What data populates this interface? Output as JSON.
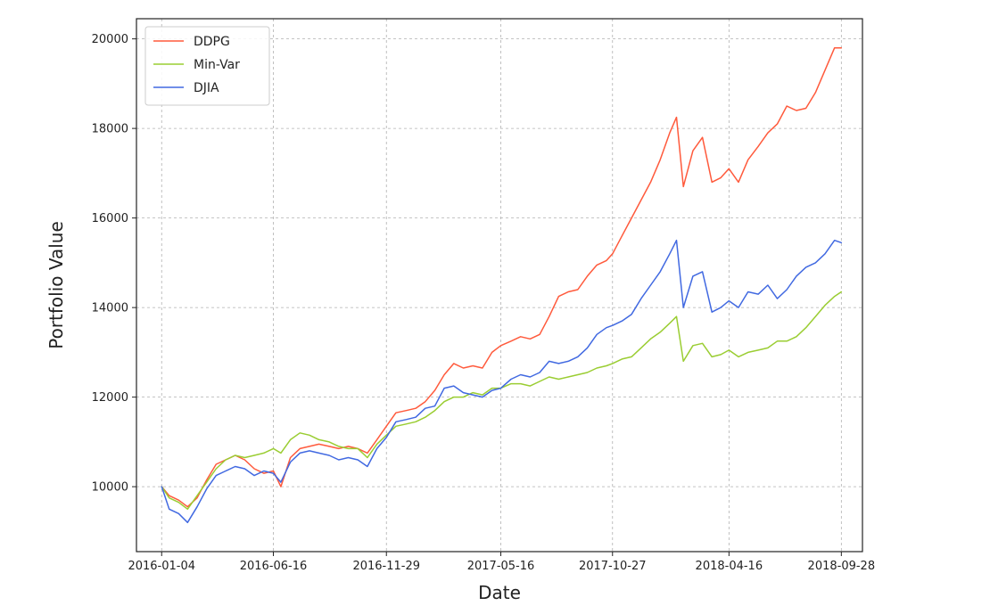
{
  "chart_data": {
    "type": "line",
    "xlabel": "Date",
    "ylabel": "Portfolio Value",
    "x_ticks": [
      "2016-01-04",
      "2016-06-16",
      "2016-11-29",
      "2017-05-16",
      "2017-10-27",
      "2018-04-16",
      "2018-09-28"
    ],
    "y_ticks": [
      10000,
      12000,
      14000,
      16000,
      18000,
      20000
    ],
    "xlim": [
      "2015-11-28",
      "2018-10-29"
    ],
    "ylim": [
      8550,
      20450
    ],
    "grid": true,
    "legend_position": "top-left",
    "series": [
      {
        "name": "DDPG",
        "color": "#ff5a3c",
        "points": [
          [
            "2016-01-04",
            10000
          ],
          [
            "2016-01-15",
            9800
          ],
          [
            "2016-01-29",
            9700
          ],
          [
            "2016-02-11",
            9550
          ],
          [
            "2016-02-25",
            9750
          ],
          [
            "2016-03-10",
            10150
          ],
          [
            "2016-03-24",
            10500
          ],
          [
            "2016-04-07",
            10600
          ],
          [
            "2016-04-21",
            10700
          ],
          [
            "2016-05-05",
            10600
          ],
          [
            "2016-05-19",
            10400
          ],
          [
            "2016-06-02",
            10300
          ],
          [
            "2016-06-16",
            10350
          ],
          [
            "2016-06-27",
            10000
          ],
          [
            "2016-07-11",
            10650
          ],
          [
            "2016-07-25",
            10850
          ],
          [
            "2016-08-08",
            10900
          ],
          [
            "2016-08-22",
            10950
          ],
          [
            "2016-09-06",
            10900
          ],
          [
            "2016-09-20",
            10850
          ],
          [
            "2016-10-04",
            10900
          ],
          [
            "2016-10-18",
            10850
          ],
          [
            "2016-11-01",
            10750
          ],
          [
            "2016-11-15",
            11050
          ],
          [
            "2016-11-29",
            11350
          ],
          [
            "2016-12-13",
            11650
          ],
          [
            "2016-12-28",
            11700
          ],
          [
            "2017-01-11",
            11750
          ],
          [
            "2017-01-25",
            11900
          ],
          [
            "2017-02-08",
            12150
          ],
          [
            "2017-02-22",
            12500
          ],
          [
            "2017-03-08",
            12750
          ],
          [
            "2017-03-22",
            12650
          ],
          [
            "2017-04-05",
            12700
          ],
          [
            "2017-04-19",
            12650
          ],
          [
            "2017-05-03",
            13000
          ],
          [
            "2017-05-16",
            13150
          ],
          [
            "2017-05-31",
            13250
          ],
          [
            "2017-06-14",
            13350
          ],
          [
            "2017-06-28",
            13300
          ],
          [
            "2017-07-12",
            13400
          ],
          [
            "2017-07-26",
            13800
          ],
          [
            "2017-08-09",
            14250
          ],
          [
            "2017-08-23",
            14350
          ],
          [
            "2017-09-06",
            14400
          ],
          [
            "2017-09-20",
            14700
          ],
          [
            "2017-10-04",
            14950
          ],
          [
            "2017-10-18",
            15050
          ],
          [
            "2017-10-27",
            15200
          ],
          [
            "2017-11-10",
            15600
          ],
          [
            "2017-11-24",
            16000
          ],
          [
            "2017-12-08",
            16400
          ],
          [
            "2017-12-22",
            16800
          ],
          [
            "2018-01-05",
            17300
          ],
          [
            "2018-01-19",
            17900
          ],
          [
            "2018-01-29",
            18250
          ],
          [
            "2018-02-08",
            16700
          ],
          [
            "2018-02-22",
            17500
          ],
          [
            "2018-03-08",
            17800
          ],
          [
            "2018-03-22",
            16800
          ],
          [
            "2018-04-04",
            16900
          ],
          [
            "2018-04-16",
            17100
          ],
          [
            "2018-04-30",
            16800
          ],
          [
            "2018-05-14",
            17300
          ],
          [
            "2018-05-29",
            17600
          ],
          [
            "2018-06-12",
            17900
          ],
          [
            "2018-06-26",
            18100
          ],
          [
            "2018-07-10",
            18500
          ],
          [
            "2018-07-24",
            18400
          ],
          [
            "2018-08-07",
            18450
          ],
          [
            "2018-08-21",
            18800
          ],
          [
            "2018-09-04",
            19300
          ],
          [
            "2018-09-18",
            19800
          ],
          [
            "2018-09-28",
            19800
          ]
        ]
      },
      {
        "name": "Min-Var",
        "color": "#9acd32",
        "points": [
          [
            "2016-01-04",
            10000
          ],
          [
            "2016-01-15",
            9750
          ],
          [
            "2016-01-29",
            9650
          ],
          [
            "2016-02-11",
            9500
          ],
          [
            "2016-02-25",
            9800
          ],
          [
            "2016-03-10",
            10100
          ],
          [
            "2016-03-24",
            10400
          ],
          [
            "2016-04-07",
            10600
          ],
          [
            "2016-04-21",
            10700
          ],
          [
            "2016-05-05",
            10650
          ],
          [
            "2016-05-19",
            10700
          ],
          [
            "2016-06-02",
            10750
          ],
          [
            "2016-06-16",
            10850
          ],
          [
            "2016-06-27",
            10750
          ],
          [
            "2016-07-11",
            11050
          ],
          [
            "2016-07-25",
            11200
          ],
          [
            "2016-08-08",
            11150
          ],
          [
            "2016-08-22",
            11050
          ],
          [
            "2016-09-06",
            11000
          ],
          [
            "2016-09-20",
            10900
          ],
          [
            "2016-10-04",
            10850
          ],
          [
            "2016-10-18",
            10850
          ],
          [
            "2016-11-01",
            10650
          ],
          [
            "2016-11-15",
            10950
          ],
          [
            "2016-11-29",
            11150
          ],
          [
            "2016-12-13",
            11350
          ],
          [
            "2016-12-28",
            11400
          ],
          [
            "2017-01-11",
            11450
          ],
          [
            "2017-01-25",
            11550
          ],
          [
            "2017-02-08",
            11700
          ],
          [
            "2017-02-22",
            11900
          ],
          [
            "2017-03-08",
            12000
          ],
          [
            "2017-03-22",
            12000
          ],
          [
            "2017-04-05",
            12100
          ],
          [
            "2017-04-19",
            12050
          ],
          [
            "2017-05-03",
            12200
          ],
          [
            "2017-05-16",
            12200
          ],
          [
            "2017-05-31",
            12300
          ],
          [
            "2017-06-14",
            12300
          ],
          [
            "2017-06-28",
            12250
          ],
          [
            "2017-07-12",
            12350
          ],
          [
            "2017-07-26",
            12450
          ],
          [
            "2017-08-09",
            12400
          ],
          [
            "2017-08-23",
            12450
          ],
          [
            "2017-09-06",
            12500
          ],
          [
            "2017-09-20",
            12550
          ],
          [
            "2017-10-04",
            12650
          ],
          [
            "2017-10-18",
            12700
          ],
          [
            "2017-10-27",
            12750
          ],
          [
            "2017-11-10",
            12850
          ],
          [
            "2017-11-24",
            12900
          ],
          [
            "2017-12-08",
            13100
          ],
          [
            "2017-12-22",
            13300
          ],
          [
            "2018-01-05",
            13450
          ],
          [
            "2018-01-19",
            13650
          ],
          [
            "2018-01-29",
            13800
          ],
          [
            "2018-02-08",
            12800
          ],
          [
            "2018-02-22",
            13150
          ],
          [
            "2018-03-08",
            13200
          ],
          [
            "2018-03-22",
            12900
          ],
          [
            "2018-04-04",
            12950
          ],
          [
            "2018-04-16",
            13050
          ],
          [
            "2018-04-30",
            12900
          ],
          [
            "2018-05-14",
            13000
          ],
          [
            "2018-05-29",
            13050
          ],
          [
            "2018-06-12",
            13100
          ],
          [
            "2018-06-26",
            13250
          ],
          [
            "2018-07-10",
            13250
          ],
          [
            "2018-07-24",
            13350
          ],
          [
            "2018-08-07",
            13550
          ],
          [
            "2018-08-21",
            13800
          ],
          [
            "2018-09-04",
            14050
          ],
          [
            "2018-09-18",
            14250
          ],
          [
            "2018-09-28",
            14350
          ]
        ]
      },
      {
        "name": "DJIA",
        "color": "#4169e1",
        "points": [
          [
            "2016-01-04",
            10000
          ],
          [
            "2016-01-15",
            9500
          ],
          [
            "2016-01-29",
            9400
          ],
          [
            "2016-02-11",
            9200
          ],
          [
            "2016-02-25",
            9550
          ],
          [
            "2016-03-10",
            9950
          ],
          [
            "2016-03-24",
            10250
          ],
          [
            "2016-04-07",
            10350
          ],
          [
            "2016-04-21",
            10450
          ],
          [
            "2016-05-05",
            10400
          ],
          [
            "2016-05-19",
            10250
          ],
          [
            "2016-06-02",
            10350
          ],
          [
            "2016-06-16",
            10300
          ],
          [
            "2016-06-27",
            10100
          ],
          [
            "2016-07-11",
            10550
          ],
          [
            "2016-07-25",
            10750
          ],
          [
            "2016-08-08",
            10800
          ],
          [
            "2016-08-22",
            10750
          ],
          [
            "2016-09-06",
            10700
          ],
          [
            "2016-09-20",
            10600
          ],
          [
            "2016-10-04",
            10650
          ],
          [
            "2016-10-18",
            10600
          ],
          [
            "2016-11-01",
            10450
          ],
          [
            "2016-11-15",
            10850
          ],
          [
            "2016-11-29",
            11100
          ],
          [
            "2016-12-13",
            11450
          ],
          [
            "2016-12-28",
            11500
          ],
          [
            "2017-01-11",
            11550
          ],
          [
            "2017-01-25",
            11750
          ],
          [
            "2017-02-08",
            11800
          ],
          [
            "2017-02-22",
            12200
          ],
          [
            "2017-03-08",
            12250
          ],
          [
            "2017-03-22",
            12100
          ],
          [
            "2017-04-05",
            12050
          ],
          [
            "2017-04-19",
            12000
          ],
          [
            "2017-05-03",
            12150
          ],
          [
            "2017-05-16",
            12200
          ],
          [
            "2017-05-31",
            12400
          ],
          [
            "2017-06-14",
            12500
          ],
          [
            "2017-06-28",
            12450
          ],
          [
            "2017-07-12",
            12550
          ],
          [
            "2017-07-26",
            12800
          ],
          [
            "2017-08-09",
            12750
          ],
          [
            "2017-08-23",
            12800
          ],
          [
            "2017-09-06",
            12900
          ],
          [
            "2017-09-20",
            13100
          ],
          [
            "2017-10-04",
            13400
          ],
          [
            "2017-10-18",
            13550
          ],
          [
            "2017-10-27",
            13600
          ],
          [
            "2017-11-10",
            13700
          ],
          [
            "2017-11-24",
            13850
          ],
          [
            "2017-12-08",
            14200
          ],
          [
            "2017-12-22",
            14500
          ],
          [
            "2018-01-05",
            14800
          ],
          [
            "2018-01-19",
            15200
          ],
          [
            "2018-01-29",
            15500
          ],
          [
            "2018-02-08",
            14000
          ],
          [
            "2018-02-22",
            14700
          ],
          [
            "2018-03-08",
            14800
          ],
          [
            "2018-03-22",
            13900
          ],
          [
            "2018-04-04",
            14000
          ],
          [
            "2018-04-16",
            14150
          ],
          [
            "2018-04-30",
            14000
          ],
          [
            "2018-05-14",
            14350
          ],
          [
            "2018-05-29",
            14300
          ],
          [
            "2018-06-12",
            14500
          ],
          [
            "2018-06-26",
            14200
          ],
          [
            "2018-07-10",
            14400
          ],
          [
            "2018-07-24",
            14700
          ],
          [
            "2018-08-07",
            14900
          ],
          [
            "2018-08-21",
            15000
          ],
          [
            "2018-09-04",
            15200
          ],
          [
            "2018-09-18",
            15500
          ],
          [
            "2018-09-28",
            15450
          ]
        ]
      }
    ]
  }
}
